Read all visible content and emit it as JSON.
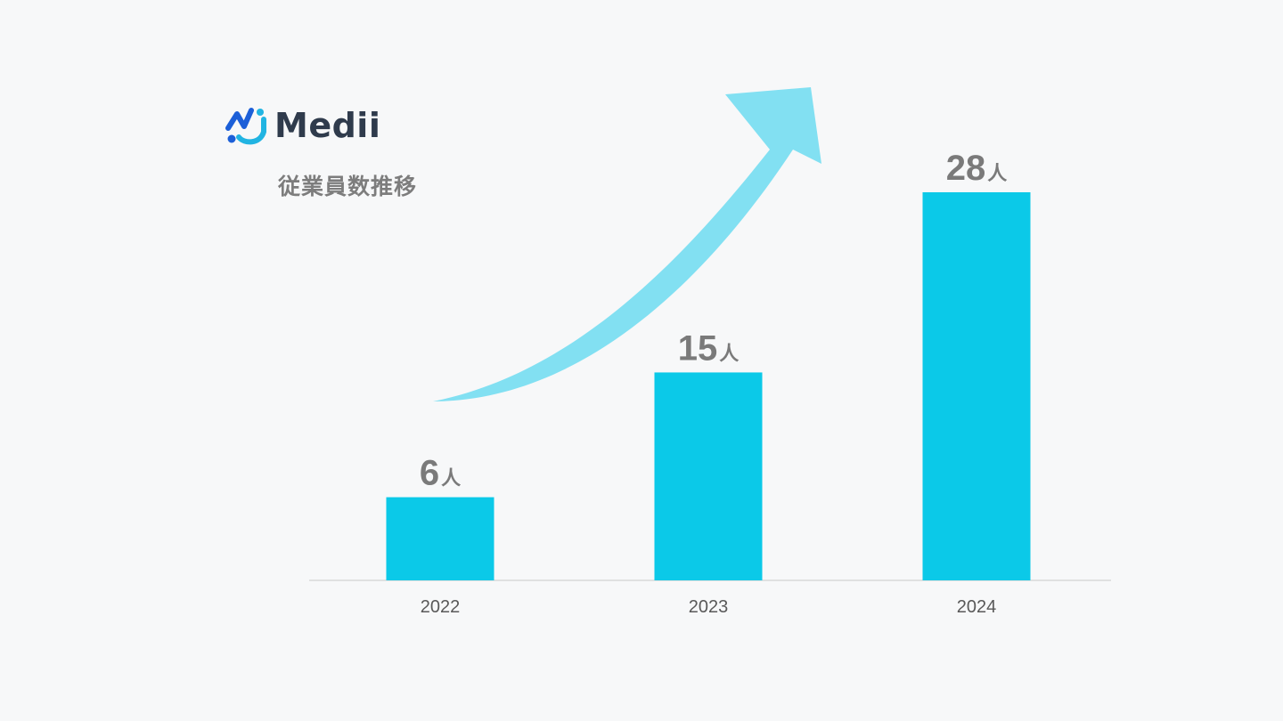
{
  "brand": {
    "name": "Medii",
    "colors": {
      "blue": "#1c5fd8",
      "cyan": "#21b4e2"
    }
  },
  "title": "従業員数推移",
  "colors": {
    "bar": "#0bc9e8",
    "arrow": "#82e0f2",
    "axis": "#d9d9d9",
    "label": "#7a7a7a",
    "tick": "#595959"
  },
  "chart_data": {
    "type": "bar",
    "title": "従業員数推移",
    "categories": [
      "2022",
      "2023",
      "2024"
    ],
    "values": [
      6,
      15,
      28
    ],
    "value_labels": [
      "6",
      "15",
      "28"
    ],
    "unit": "人",
    "xlabel": "",
    "ylabel": "",
    "ylim": [
      0,
      28
    ],
    "grid": false,
    "legend": "none",
    "annotation": "upward-trend-arrow"
  }
}
